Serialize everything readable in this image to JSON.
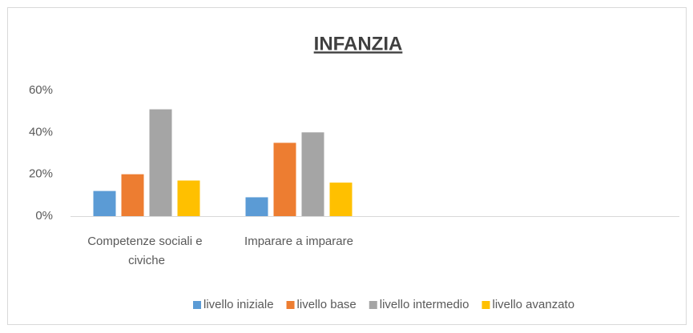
{
  "chart_data": {
    "type": "bar",
    "title": "INFANZIA",
    "categories": [
      "Competenze sociali e civiche",
      "Imparare a imparare",
      null,
      null
    ],
    "series": [
      {
        "name": "livello iniziale",
        "color": "#5b9bd5",
        "values": [
          12,
          9,
          null,
          null
        ]
      },
      {
        "name": "livello base",
        "color": "#ed7d31",
        "values": [
          20,
          35,
          null,
          null
        ]
      },
      {
        "name": "livello intermedio",
        "color": "#a5a5a5",
        "values": [
          51,
          40,
          null,
          null
        ]
      },
      {
        "name": "livello avanzato",
        "color": "#ffc000",
        "values": [
          17,
          16,
          null,
          null
        ]
      }
    ],
    "ylim": [
      0,
      60
    ],
    "yticks": [
      {
        "value": 0,
        "label": "0%"
      },
      {
        "value": 20,
        "label": "20%"
      },
      {
        "value": 40,
        "label": "40%"
      },
      {
        "value": 60,
        "label": "60%"
      }
    ],
    "grid": false,
    "legend": "bottom"
  }
}
